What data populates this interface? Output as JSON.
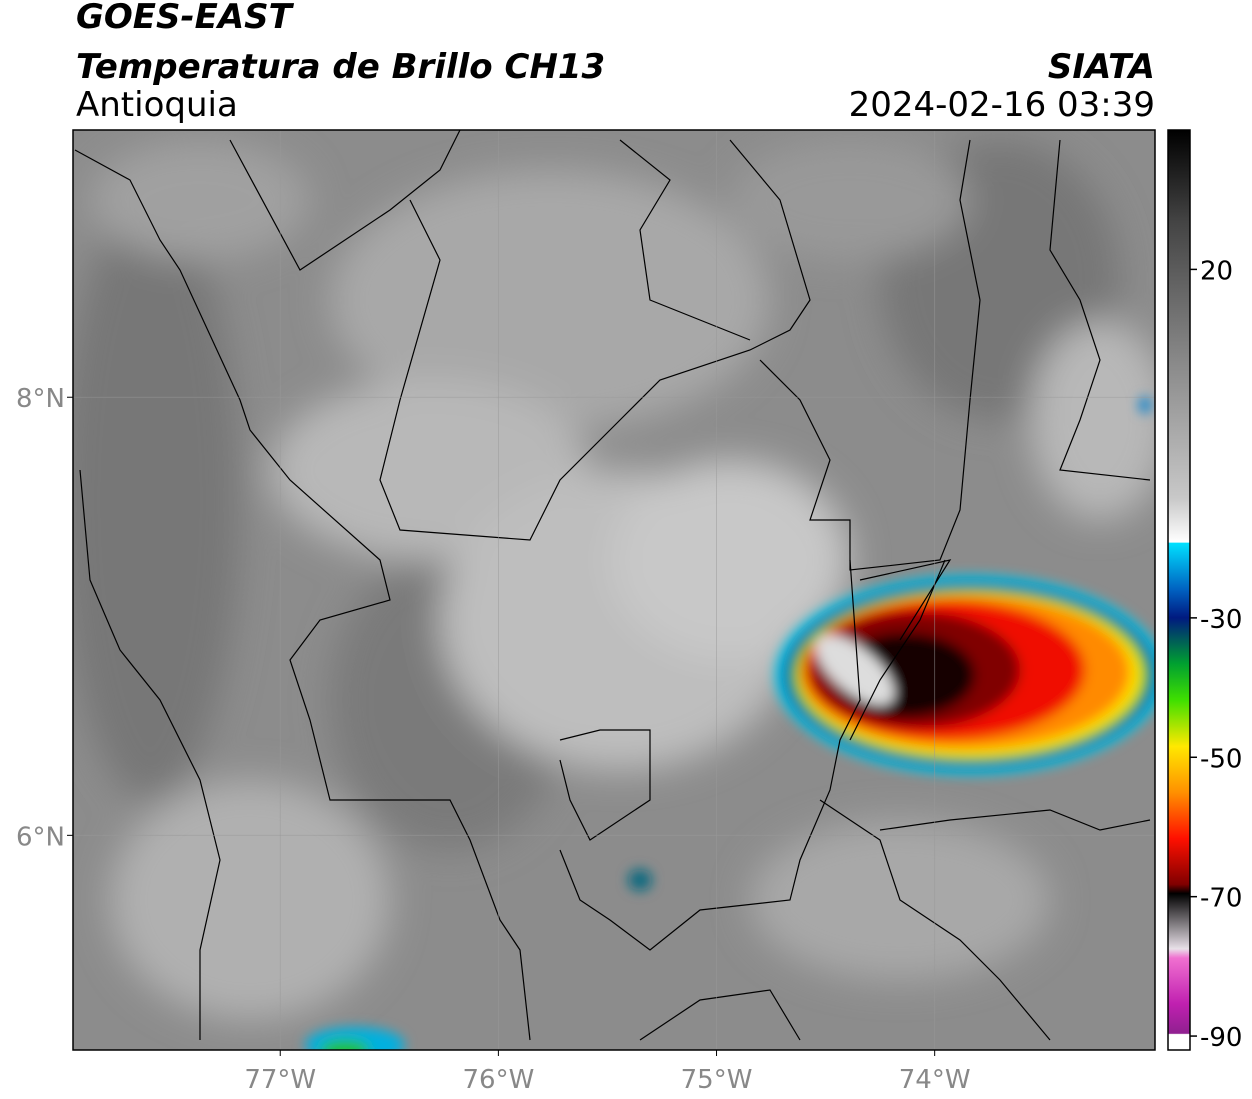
{
  "header": {
    "title": "GOES-EAST",
    "subtitle": "Temperatura de Brillo CH13",
    "region": "Antioquia",
    "source": "SIATA",
    "datetime": "2024-02-16 03:39"
  },
  "map": {
    "xlim": [
      -77.95,
      -72.99
    ],
    "ylim": [
      5.02,
      9.22
    ],
    "xticks": [
      {
        "value": -77,
        "label": "77°W"
      },
      {
        "value": -76,
        "label": "76°W"
      },
      {
        "value": -75,
        "label": "75°W"
      },
      {
        "value": -74,
        "label": "74°W"
      }
    ],
    "yticks": [
      {
        "value": 8,
        "label": "8°N"
      },
      {
        "value": 6,
        "label": "6°N"
      }
    ],
    "grid": true
  },
  "colorbar": {
    "lim": [
      -92,
      40
    ],
    "ticks": [
      20,
      -30,
      -50,
      -70,
      -90
    ]
  }
}
